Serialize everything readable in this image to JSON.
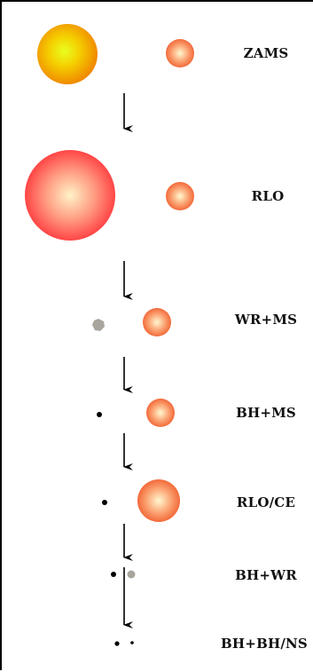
{
  "stages": [
    {
      "id": "zams",
      "label": "ZAMS"
    },
    {
      "id": "rlo",
      "label": "RLO"
    },
    {
      "id": "wrms",
      "label": "WR+MS"
    },
    {
      "id": "bhms",
      "label": "BH+MS"
    },
    {
      "id": "rloce",
      "label": "RLO/CE"
    },
    {
      "id": "bhwr",
      "label": "BH+WR"
    },
    {
      "id": "bhbh",
      "label": "BH+BH/NS"
    }
  ],
  "colors": {
    "primary_zams_center": "#e8ff20",
    "primary_zams_edge": "#f08a00",
    "giant_center": "#fff3c8",
    "giant_edge": "#ff4545",
    "companion_center": "#fff8d0",
    "companion_edge": "#f26a3a",
    "wolf_rayet": "#a8a59c",
    "compact_object": "#000000",
    "arrow": "#000000"
  }
}
